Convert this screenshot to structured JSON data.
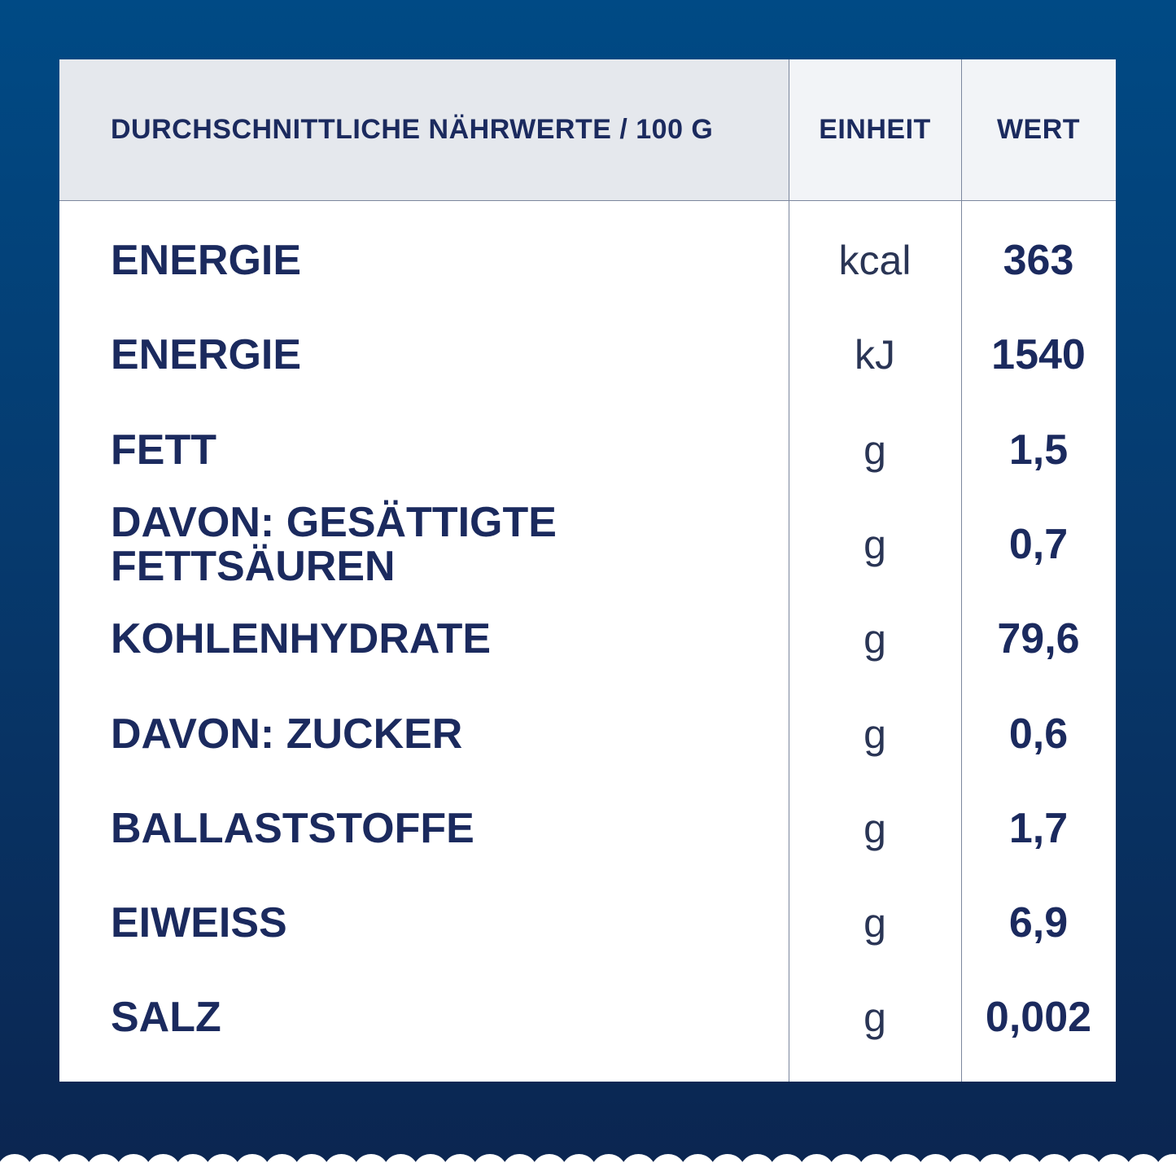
{
  "table": {
    "header": [
      "DURCHSCHNITTLICHE NÄHRWERTE / 100 G",
      "EINHEIT",
      "WERT"
    ],
    "rows": [
      [
        "ENERGIE",
        "kcal",
        "363"
      ],
      [
        "ENERGIE",
        "kJ",
        "1540"
      ],
      [
        "FETT",
        "g",
        "1,5"
      ],
      [
        "DAVON: GESÄTTIGTE FETTSÄUREN",
        "g",
        "0,7"
      ],
      [
        "KOHLENHYDRATE",
        "g",
        "79,6"
      ],
      [
        "DAVON: ZUCKER",
        "g",
        "0,6"
      ],
      [
        "BALLASTSTOFFE",
        "g",
        "1,7"
      ],
      [
        "EIWEISS",
        "g",
        "6,9"
      ],
      [
        "SALZ",
        "g",
        "0,002"
      ]
    ]
  }
}
